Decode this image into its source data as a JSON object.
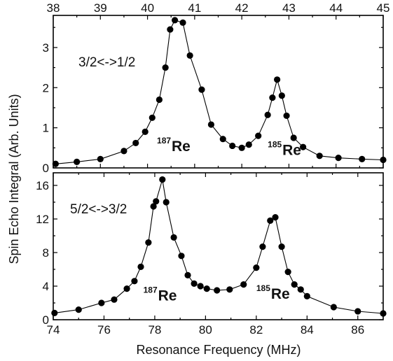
{
  "chart_data": [
    {
      "type": "scatter",
      "panel": "top",
      "title": "",
      "xlabel": "",
      "ylabel": "",
      "xlim": [
        38,
        45
      ],
      "ylim": [
        0,
        3.8
      ],
      "x_ticks": [
        38,
        39,
        40,
        41,
        42,
        43,
        44,
        45
      ],
      "x_tick_labels": [
        "38",
        "39",
        "40",
        "41",
        "42",
        "43",
        "44",
        "45"
      ],
      "y_ticks": [
        0,
        1,
        2,
        3
      ],
      "y_tick_labels": [
        "0",
        "1",
        "2",
        "3"
      ],
      "x_tick_position": "top",
      "grid": false,
      "annotation": "3/2<->1/2",
      "peak_labels": [
        {
          "mass": "187",
          "element": "Re",
          "x": 40.2,
          "y": 0.42
        },
        {
          "mass": "185",
          "element": "Re",
          "x": 42.55,
          "y": 0.32
        }
      ],
      "series": [
        {
          "x": [
            38.05,
            38.5,
            39.0,
            39.5,
            39.75,
            39.95,
            40.1,
            40.25,
            40.38,
            40.48,
            40.58,
            40.75,
            40.9,
            41.15,
            41.35,
            41.6,
            41.8,
            42.0,
            42.15,
            42.35,
            42.55,
            42.65,
            42.75,
            42.85,
            42.95,
            43.1,
            43.3,
            43.65,
            44.05,
            44.55,
            45.0
          ],
          "y": [
            0.1,
            0.15,
            0.22,
            0.42,
            0.62,
            0.9,
            1.25,
            1.7,
            2.5,
            3.45,
            3.68,
            3.62,
            2.8,
            1.95,
            1.08,
            0.72,
            0.55,
            0.5,
            0.58,
            0.8,
            1.32,
            1.75,
            2.2,
            1.8,
            1.3,
            0.75,
            0.52,
            0.3,
            0.25,
            0.22,
            0.2
          ]
        }
      ]
    },
    {
      "type": "scatter",
      "panel": "bottom",
      "title": "",
      "xlabel": "Resonance Frequency (MHz)",
      "ylabel": "Spin Echo Integral (Arb. Units)",
      "xlim": [
        74,
        87
      ],
      "ylim": [
        0,
        17.5
      ],
      "x_ticks": [
        74,
        76,
        78,
        80,
        82,
        84,
        86
      ],
      "x_tick_labels": [
        "74",
        "76",
        "78",
        "80",
        "82",
        "84",
        "86"
      ],
      "y_ticks": [
        0,
        4,
        8,
        12,
        16
      ],
      "y_tick_labels": [
        "0",
        "4",
        "8",
        "12",
        "16"
      ],
      "grid": false,
      "annotation": "5/2<->3/2",
      "peak_labels": [
        {
          "mass": "187",
          "element": "Re",
          "x": 77.55,
          "y": 2.3
        },
        {
          "mass": "185",
          "element": "Re",
          "x": 82.0,
          "y": 2.5
        }
      ],
      "series": [
        {
          "x": [
            74.05,
            75.0,
            75.9,
            76.4,
            76.9,
            77.2,
            77.45,
            77.75,
            77.95,
            78.05,
            78.3,
            78.45,
            78.75,
            79.05,
            79.3,
            79.55,
            79.8,
            80.05,
            80.45,
            80.95,
            81.5,
            82.0,
            82.25,
            82.55,
            82.75,
            83.0,
            83.25,
            83.5,
            83.75,
            84.0,
            85.05,
            86.0,
            87.0
          ],
          "y": [
            0.8,
            1.2,
            2.0,
            2.4,
            3.7,
            4.6,
            6.3,
            9.2,
            13.5,
            14.1,
            16.7,
            14.0,
            9.8,
            7.6,
            5.3,
            4.3,
            4.0,
            3.7,
            3.5,
            3.6,
            4.2,
            6.2,
            8.7,
            11.8,
            12.2,
            8.7,
            5.7,
            4.2,
            3.6,
            2.8,
            1.5,
            1.0,
            0.75
          ]
        }
      ]
    }
  ]
}
